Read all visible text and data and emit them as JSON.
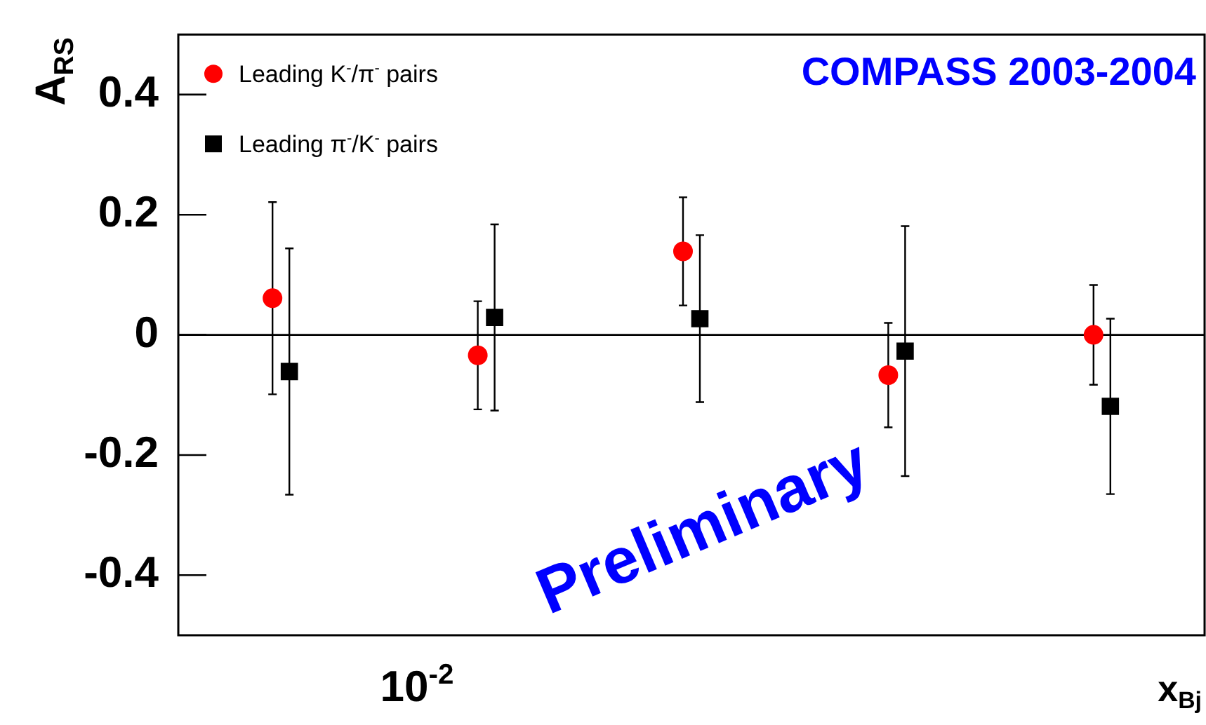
{
  "chart_data": {
    "type": "scatter",
    "title": "COMPASS 2003-2004",
    "xlabel": "x$_{Bj}$",
    "ylabel": "A$_{RS}$",
    "grid": false,
    "legend": "top left",
    "categories": [
      null,
      null,
      null,
      null,
      null
    ],
    "ylim": [
      -0.5,
      0.5
    ],
    "yticks": [
      -0.4,
      -0.2,
      0,
      0.2,
      0.4
    ],
    "series": [
      {
        "name": "Leading K$^{-}$/π$^{-}$ pairs",
        "color": "#ff0000",
        "marker": "circle",
        "values": [
          0.061,
          -0.034,
          0.139,
          -0.067,
          0.0
        ],
        "errors": [
          0.16,
          0.09,
          0.09,
          0.087,
          0.083
        ]
      },
      {
        "name": "Leading π$^{-}$/K$^{-}$ pairs",
        "color": "#000000",
        "marker": "square",
        "values": [
          -0.061,
          0.029,
          0.027,
          -0.027,
          -0.119
        ],
        "errors": [
          0.205,
          0.155,
          0.139,
          0.208,
          0.146
        ]
      }
    ],
    "ref_lines": [
      {
        "axis": "y",
        "value": 0,
        "color": "#000000"
      }
    ],
    "annotations": [
      "Preliminary",
      "10$^{-2}$"
    ]
  }
}
